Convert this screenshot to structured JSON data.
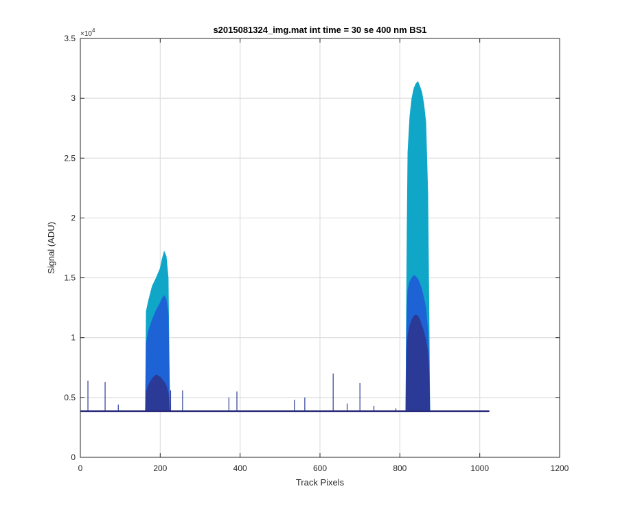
{
  "chart_data": {
    "type": "area",
    "title": "s2015081324_img.mat int time = 30 se  400 nm BS1",
    "xlabel": "Track Pixels",
    "ylabel": "Signal (ADU)",
    "xlim": [
      0,
      1200
    ],
    "ylim": [
      0,
      35000
    ],
    "x_ticks": [
      0,
      200,
      400,
      600,
      800,
      1000,
      1200
    ],
    "x_tick_labels": [
      "0",
      "200",
      "400",
      "600",
      "800",
      "1000",
      "1200"
    ],
    "y_ticks": [
      0,
      5000,
      10000,
      15000,
      20000,
      25000,
      30000,
      35000
    ],
    "y_tick_labels": [
      "0",
      "0.5",
      "1",
      "1.5",
      "2",
      "2.5",
      "3",
      "3.5"
    ],
    "y_exponent_label": "×10",
    "y_exponent_power": "4",
    "grid": true,
    "baseline": 3900,
    "series": [
      {
        "color": "#0fa6c8",
        "x": [
          1,
          163,
          165,
          170,
          180,
          190,
          200,
          205,
          210,
          215,
          220,
          222,
          224,
          815,
          816,
          818,
          820,
          825,
          830,
          835,
          840,
          845,
          850,
          855,
          860,
          865,
          870,
          873,
          875,
          1024
        ],
        "y": [
          3900,
          3900,
          12200,
          13000,
          14300,
          15000,
          15800,
          16600,
          17200,
          16800,
          15000,
          9000,
          3900,
          3900,
          10000,
          19000,
          25500,
          28500,
          30000,
          30800,
          31200,
          31400,
          31000,
          30500,
          29500,
          28000,
          22000,
          12000,
          3900,
          3900
        ]
      },
      {
        "color": "#1e63d6",
        "x": [
          1,
          163,
          165,
          170,
          180,
          190,
          200,
          205,
          210,
          215,
          220,
          222,
          224,
          815,
          816,
          818,
          820,
          825,
          830,
          835,
          840,
          845,
          850,
          855,
          860,
          865,
          870,
          873,
          875,
          1024
        ],
        "y": [
          3900,
          3900,
          9500,
          10500,
          11500,
          12300,
          12900,
          13300,
          13500,
          13200,
          12000,
          8000,
          3900,
          3900,
          9000,
          12500,
          14000,
          14700,
          15000,
          15200,
          15100,
          14900,
          14500,
          14000,
          13300,
          12500,
          10500,
          8000,
          3900,
          3900
        ]
      },
      {
        "color": "#2b3a96",
        "x": [
          1,
          163,
          165,
          170,
          180,
          190,
          200,
          205,
          210,
          215,
          220,
          222,
          224,
          815,
          816,
          818,
          820,
          825,
          830,
          835,
          840,
          845,
          850,
          855,
          860,
          865,
          870,
          873,
          875,
          1024
        ],
        "y": [
          3900,
          3900,
          5500,
          6000,
          6600,
          6900,
          6700,
          6500,
          6300,
          6000,
          5400,
          4800,
          3900,
          3900,
          6500,
          9000,
          10200,
          11000,
          11500,
          11800,
          11900,
          11800,
          11500,
          11000,
          10500,
          9800,
          8800,
          7000,
          3900,
          3900
        ]
      }
    ],
    "baseline_line": {
      "color": "#2b2a7a",
      "x": [
        1,
        1024
      ],
      "y": [
        3850,
        3850
      ]
    },
    "spikes": {
      "color": "#2b3a96",
      "x": [
        19,
        62,
        95,
        226,
        256,
        372,
        392,
        536,
        562,
        633,
        668,
        700,
        735,
        790
      ],
      "y": [
        6400,
        6300,
        4400,
        5600,
        5600,
        5000,
        5500,
        4800,
        5000,
        7000,
        4500,
        6200,
        4300,
        4100
      ]
    }
  }
}
